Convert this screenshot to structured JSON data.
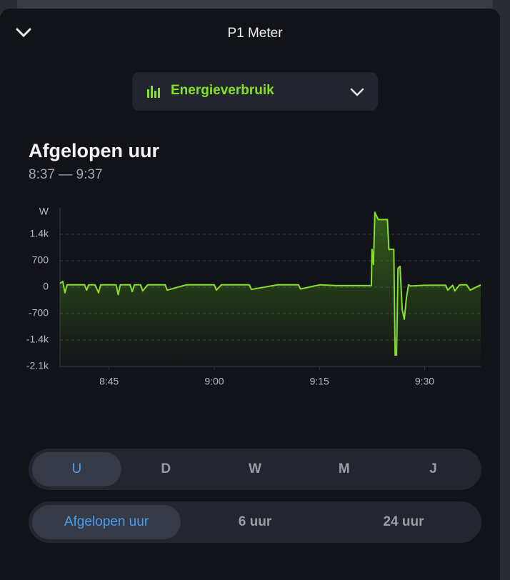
{
  "header": {
    "title": "P1 Meter"
  },
  "dropdown": {
    "label": "Energieverbruik"
  },
  "section": {
    "title": "Afgelopen uur",
    "subtitle": "8:37 — 9:37"
  },
  "chart_data": {
    "type": "line",
    "y_label": "W",
    "color": "#86e02a",
    "grid": true,
    "xlim": [
      518,
      578
    ],
    "ylim": [
      -2100,
      2100
    ],
    "xticks": [
      {
        "value": 525,
        "label": "8:45"
      },
      {
        "value": 540,
        "label": "9:00"
      },
      {
        "value": 555,
        "label": "9:15"
      },
      {
        "value": 570,
        "label": "9:30"
      }
    ],
    "yticks": [
      {
        "value": -2100,
        "label": "-2.1k"
      },
      {
        "value": -1400,
        "label": "-1.4k"
      },
      -700,
      0,
      700,
      {
        "value": 1400,
        "label": "1.4k"
      }
    ],
    "x": [
      518,
      518.4,
      518.7,
      519,
      520,
      521.5,
      521.8,
      522.1,
      523,
      523.5,
      523.8,
      524.5,
      526,
      526.3,
      526.6,
      528,
      528.3,
      528.6,
      529.5,
      529.8,
      530.5,
      531,
      533,
      533.3,
      536,
      540,
      540.3,
      541,
      545,
      545.3,
      549,
      552,
      552.3,
      555,
      557.5,
      558,
      560,
      562.4,
      562.5,
      562.7,
      562.9,
      563.1,
      563.4,
      564.7,
      564.9,
      565.6,
      565.8,
      566,
      566.2,
      566.5,
      566.8,
      567.1,
      567.4,
      567.7,
      568,
      570,
      573,
      573.3,
      574,
      574.3,
      575,
      576,
      576.5,
      578
    ],
    "values": [
      100,
      150,
      -150,
      60,
      60,
      60,
      -80,
      60,
      60,
      -150,
      60,
      60,
      60,
      -200,
      60,
      60,
      -120,
      60,
      60,
      -100,
      60,
      60,
      60,
      -80,
      60,
      60,
      -80,
      60,
      60,
      -60,
      60,
      60,
      -50,
      60,
      40,
      40,
      40,
      40,
      1000,
      600,
      1980,
      1900,
      1790,
      1790,
      1000,
      1000,
      -1800,
      -1800,
      500,
      550,
      -600,
      -850,
      -300,
      60,
      30,
      50,
      50,
      -80,
      50,
      -100,
      60,
      60,
      -80,
      60
    ]
  },
  "period_tabs": {
    "items": [
      "U",
      "D",
      "W",
      "M",
      "J"
    ],
    "selected": "U"
  },
  "range_tabs": {
    "items": [
      "Afgelopen uur",
      "6 uur",
      "24 uur"
    ],
    "selected": "Afgelopen uur"
  }
}
